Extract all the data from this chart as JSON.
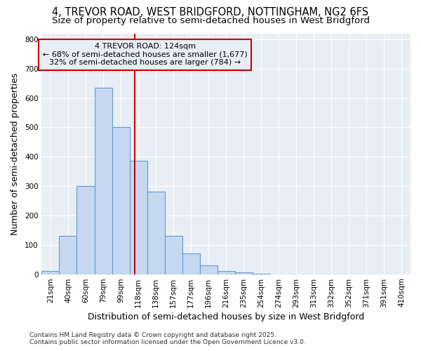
{
  "title1": "4, TREVOR ROAD, WEST BRIDGFORD, NOTTINGHAM, NG2 6FS",
  "title2": "Size of property relative to semi-detached houses in West Bridgford",
  "xlabel": "Distribution of semi-detached houses by size in West Bridgford",
  "ylabel": "Number of semi-detached properties",
  "bins": [
    "21sqm",
    "40sqm",
    "60sqm",
    "79sqm",
    "99sqm",
    "118sqm",
    "138sqm",
    "157sqm",
    "177sqm",
    "196sqm",
    "216sqm",
    "235sqm",
    "254sqm",
    "274sqm",
    "293sqm",
    "313sqm",
    "332sqm",
    "352sqm",
    "371sqm",
    "391sqm",
    "410sqm"
  ],
  "values": [
    10,
    130,
    300,
    635,
    500,
    385,
    280,
    130,
    70,
    30,
    12,
    5,
    1,
    0,
    0,
    0,
    0,
    0,
    0,
    0,
    0
  ],
  "bar_color": "#c5d8f0",
  "bar_edgecolor": "#6699cc",
  "vline_x_idx": 5,
  "vline_color": "#cc0000",
  "annotation_title": "4 TREVOR ROAD: 124sqm",
  "annotation_line1": "← 68% of semi-detached houses are smaller (1,677)",
  "annotation_line2": "32% of semi-detached houses are larger (784) →",
  "annotation_box_color": "#cc0000",
  "ylim": [
    0,
    820
  ],
  "yticks": [
    0,
    100,
    200,
    300,
    400,
    500,
    600,
    700,
    800
  ],
  "plot_bg_color": "#e8eef5",
  "fig_bg_color": "#ffffff",
  "grid_color": "#ffffff",
  "footer1": "Contains HM Land Registry data © Crown copyright and database right 2025.",
  "footer2": "Contains public sector information licensed under the Open Government Licence v3.0.",
  "title_fontsize": 10.5,
  "subtitle_fontsize": 9.5,
  "tick_fontsize": 7.5,
  "label_fontsize": 9,
  "footer_fontsize": 6.5
}
